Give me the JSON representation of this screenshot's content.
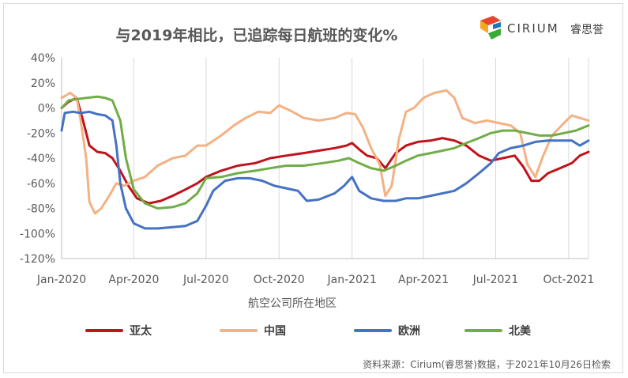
{
  "header": {
    "title": "与2019年相比，已追踪每日航班的变化%",
    "logo_text": "CIRIUM",
    "logo_cn": "睿思誉"
  },
  "footer": {
    "source": "资料来源：Cirium(睿思誉)数据，于2021年10月26日检索"
  },
  "chart_data": {
    "type": "line",
    "title": "与2019年相比，已追踪每日航班的变化%",
    "xlabel": "航空公司所在地区",
    "ylabel": "",
    "ylim": [
      -120,
      40
    ],
    "y_ticks": [
      "40%",
      "20%",
      "0%",
      "-20%",
      "-40%",
      "-60%",
      "-80%",
      "-100%",
      "-120%"
    ],
    "y_tick_values": [
      40,
      20,
      0,
      -20,
      -40,
      -60,
      -80,
      -100,
      -120
    ],
    "x_ticks": [
      "Jan-2020",
      "Apr-2020",
      "Jul-2020",
      "Oct-2020",
      "Jan-2021",
      "Apr-2021",
      "Jul-2021",
      "Oct-2021"
    ],
    "x_tick_dates": [
      "2020-01-01",
      "2020-04-01",
      "2020-07-01",
      "2020-10-01",
      "2021-01-01",
      "2021-04-01",
      "2021-07-01",
      "2021-10-01"
    ],
    "x_range": [
      "2020-01-01",
      "2021-10-26"
    ],
    "grid": "vertical",
    "legend": "bottom",
    "series": [
      {
        "name": "亚太",
        "color": "#c0131b",
        "points": [
          [
            "2020-01-01",
            0
          ],
          [
            "2020-01-10",
            5
          ],
          [
            "2020-01-20",
            8
          ],
          [
            "2020-01-28",
            -10
          ],
          [
            "2020-02-05",
            -30
          ],
          [
            "2020-02-15",
            -35
          ],
          [
            "2020-02-25",
            -36
          ],
          [
            "2020-03-05",
            -40
          ],
          [
            "2020-03-15",
            -50
          ],
          [
            "2020-03-25",
            -62
          ],
          [
            "2020-04-05",
            -72
          ],
          [
            "2020-04-20",
            -76
          ],
          [
            "2020-05-05",
            -74
          ],
          [
            "2020-05-20",
            -70
          ],
          [
            "2020-06-05",
            -65
          ],
          [
            "2020-06-20",
            -60
          ],
          [
            "2020-07-01",
            -55
          ],
          [
            "2020-07-20",
            -50
          ],
          [
            "2020-08-10",
            -46
          ],
          [
            "2020-09-01",
            -44
          ],
          [
            "2020-09-20",
            -40
          ],
          [
            "2020-10-10",
            -38
          ],
          [
            "2020-11-01",
            -36
          ],
          [
            "2020-11-20",
            -34
          ],
          [
            "2020-12-10",
            -32
          ],
          [
            "2020-12-25",
            -30
          ],
          [
            "2021-01-01",
            -28
          ],
          [
            "2021-01-10",
            -33
          ],
          [
            "2021-01-20",
            -38
          ],
          [
            "2021-02-01",
            -40
          ],
          [
            "2021-02-12",
            -48
          ],
          [
            "2021-02-25",
            -36
          ],
          [
            "2021-03-10",
            -30
          ],
          [
            "2021-03-25",
            -27
          ],
          [
            "2021-04-10",
            -26
          ],
          [
            "2021-04-25",
            -24
          ],
          [
            "2021-05-10",
            -26
          ],
          [
            "2021-05-25",
            -30
          ],
          [
            "2021-06-10",
            -38
          ],
          [
            "2021-06-25",
            -42
          ],
          [
            "2021-07-10",
            -40
          ],
          [
            "2021-07-25",
            -38
          ],
          [
            "2021-08-05",
            -47
          ],
          [
            "2021-08-15",
            -58
          ],
          [
            "2021-08-25",
            -58
          ],
          [
            "2021-09-05",
            -52
          ],
          [
            "2021-09-20",
            -48
          ],
          [
            "2021-10-05",
            -44
          ],
          [
            "2021-10-15",
            -38
          ],
          [
            "2021-10-26",
            -35
          ]
        ]
      },
      {
        "name": "中国",
        "color": "#f4b183",
        "points": [
          [
            "2020-01-01",
            8
          ],
          [
            "2020-01-12",
            12
          ],
          [
            "2020-01-20",
            8
          ],
          [
            "2020-01-25",
            -10
          ],
          [
            "2020-02-01",
            -40
          ],
          [
            "2020-02-05",
            -75
          ],
          [
            "2020-02-12",
            -84
          ],
          [
            "2020-02-20",
            -80
          ],
          [
            "2020-03-01",
            -70
          ],
          [
            "2020-03-10",
            -60
          ],
          [
            "2020-03-20",
            -62
          ],
          [
            "2020-04-01",
            -58
          ],
          [
            "2020-04-15",
            -55
          ],
          [
            "2020-05-01",
            -46
          ],
          [
            "2020-05-20",
            -40
          ],
          [
            "2020-06-05",
            -38
          ],
          [
            "2020-06-20",
            -30
          ],
          [
            "2020-07-01",
            -30
          ],
          [
            "2020-07-20",
            -22
          ],
          [
            "2020-08-05",
            -14
          ],
          [
            "2020-08-20",
            -8
          ],
          [
            "2020-09-05",
            -3
          ],
          [
            "2020-09-20",
            -4
          ],
          [
            "2020-10-01",
            2
          ],
          [
            "2020-10-15",
            -2
          ],
          [
            "2020-11-01",
            -8
          ],
          [
            "2020-11-20",
            -10
          ],
          [
            "2020-12-10",
            -8
          ],
          [
            "2020-12-25",
            -4
          ],
          [
            "2021-01-05",
            -5
          ],
          [
            "2021-01-15",
            -16
          ],
          [
            "2021-01-25",
            -32
          ],
          [
            "2021-02-05",
            -45
          ],
          [
            "2021-02-12",
            -70
          ],
          [
            "2021-02-20",
            -62
          ],
          [
            "2021-03-01",
            -25
          ],
          [
            "2021-03-10",
            -3
          ],
          [
            "2021-03-20",
            0
          ],
          [
            "2021-04-01",
            8
          ],
          [
            "2021-04-15",
            12
          ],
          [
            "2021-04-30",
            14
          ],
          [
            "2021-05-10",
            8
          ],
          [
            "2021-05-20",
            -8
          ],
          [
            "2021-06-05",
            -12
          ],
          [
            "2021-06-20",
            -10
          ],
          [
            "2021-07-05",
            -12
          ],
          [
            "2021-07-20",
            -14
          ],
          [
            "2021-08-01",
            -20
          ],
          [
            "2021-08-10",
            -45
          ],
          [
            "2021-08-20",
            -55
          ],
          [
            "2021-08-30",
            -38
          ],
          [
            "2021-09-10",
            -22
          ],
          [
            "2021-09-25",
            -12
          ],
          [
            "2021-10-05",
            -6
          ],
          [
            "2021-10-15",
            -8
          ],
          [
            "2021-10-26",
            -10
          ]
        ]
      },
      {
        "name": "欧洲",
        "color": "#4472c4",
        "points": [
          [
            "2020-01-01",
            -18
          ],
          [
            "2020-01-05",
            -4
          ],
          [
            "2020-01-15",
            -3
          ],
          [
            "2020-01-25",
            -4
          ],
          [
            "2020-02-05",
            -3
          ],
          [
            "2020-02-15",
            -5
          ],
          [
            "2020-02-25",
            -6
          ],
          [
            "2020-03-05",
            -10
          ],
          [
            "2020-03-10",
            -30
          ],
          [
            "2020-03-15",
            -60
          ],
          [
            "2020-03-22",
            -80
          ],
          [
            "2020-04-01",
            -92
          ],
          [
            "2020-04-15",
            -96
          ],
          [
            "2020-05-01",
            -96
          ],
          [
            "2020-05-20",
            -95
          ],
          [
            "2020-06-05",
            -94
          ],
          [
            "2020-06-20",
            -90
          ],
          [
            "2020-07-01",
            -78
          ],
          [
            "2020-07-10",
            -66
          ],
          [
            "2020-07-25",
            -58
          ],
          [
            "2020-08-10",
            -56
          ],
          [
            "2020-08-25",
            -56
          ],
          [
            "2020-09-10",
            -58
          ],
          [
            "2020-09-25",
            -62
          ],
          [
            "2020-10-10",
            -64
          ],
          [
            "2020-10-25",
            -66
          ],
          [
            "2020-11-05",
            -74
          ],
          [
            "2020-11-20",
            -73
          ],
          [
            "2020-12-10",
            -68
          ],
          [
            "2020-12-22",
            -62
          ],
          [
            "2021-01-01",
            -55
          ],
          [
            "2021-01-10",
            -66
          ],
          [
            "2021-01-25",
            -72
          ],
          [
            "2021-02-10",
            -74
          ],
          [
            "2021-02-25",
            -74
          ],
          [
            "2021-03-10",
            -72
          ],
          [
            "2021-03-25",
            -72
          ],
          [
            "2021-04-10",
            -70
          ],
          [
            "2021-04-25",
            -68
          ],
          [
            "2021-05-10",
            -66
          ],
          [
            "2021-05-25",
            -60
          ],
          [
            "2021-06-10",
            -52
          ],
          [
            "2021-06-25",
            -44
          ],
          [
            "2021-07-05",
            -36
          ],
          [
            "2021-07-20",
            -32
          ],
          [
            "2021-08-05",
            -30
          ],
          [
            "2021-08-20",
            -27
          ],
          [
            "2021-09-05",
            -26
          ],
          [
            "2021-09-20",
            -26
          ],
          [
            "2021-10-05",
            -26
          ],
          [
            "2021-10-15",
            -30
          ],
          [
            "2021-10-26",
            -26
          ]
        ]
      },
      {
        "name": "北美",
        "color": "#70ad47",
        "points": [
          [
            "2020-01-01",
            0
          ],
          [
            "2020-01-10",
            6
          ],
          [
            "2020-01-20",
            7
          ],
          [
            "2020-02-01",
            8
          ],
          [
            "2020-02-15",
            9
          ],
          [
            "2020-02-25",
            8
          ],
          [
            "2020-03-05",
            6
          ],
          [
            "2020-03-15",
            -10
          ],
          [
            "2020-03-22",
            -40
          ],
          [
            "2020-04-01",
            -65
          ],
          [
            "2020-04-15",
            -76
          ],
          [
            "2020-05-01",
            -80
          ],
          [
            "2020-05-20",
            -79
          ],
          [
            "2020-06-05",
            -76
          ],
          [
            "2020-06-20",
            -68
          ],
          [
            "2020-07-01",
            -56
          ],
          [
            "2020-07-20",
            -55
          ],
          [
            "2020-08-10",
            -52
          ],
          [
            "2020-09-01",
            -50
          ],
          [
            "2020-09-20",
            -48
          ],
          [
            "2020-10-10",
            -46
          ],
          [
            "2020-11-01",
            -46
          ],
          [
            "2020-11-25",
            -44
          ],
          [
            "2020-12-15",
            -42
          ],
          [
            "2020-12-28",
            -40
          ],
          [
            "2021-01-10",
            -44
          ],
          [
            "2021-01-25",
            -48
          ],
          [
            "2021-02-10",
            -50
          ],
          [
            "2021-02-25",
            -46
          ],
          [
            "2021-03-10",
            -42
          ],
          [
            "2021-03-25",
            -38
          ],
          [
            "2021-04-10",
            -36
          ],
          [
            "2021-04-25",
            -34
          ],
          [
            "2021-05-10",
            -32
          ],
          [
            "2021-05-25",
            -28
          ],
          [
            "2021-06-10",
            -24
          ],
          [
            "2021-06-25",
            -20
          ],
          [
            "2021-07-10",
            -18
          ],
          [
            "2021-07-25",
            -18
          ],
          [
            "2021-08-10",
            -20
          ],
          [
            "2021-08-25",
            -22
          ],
          [
            "2021-09-10",
            -22
          ],
          [
            "2021-09-25",
            -20
          ],
          [
            "2021-10-10",
            -18
          ],
          [
            "2021-10-26",
            -14
          ]
        ]
      }
    ]
  }
}
